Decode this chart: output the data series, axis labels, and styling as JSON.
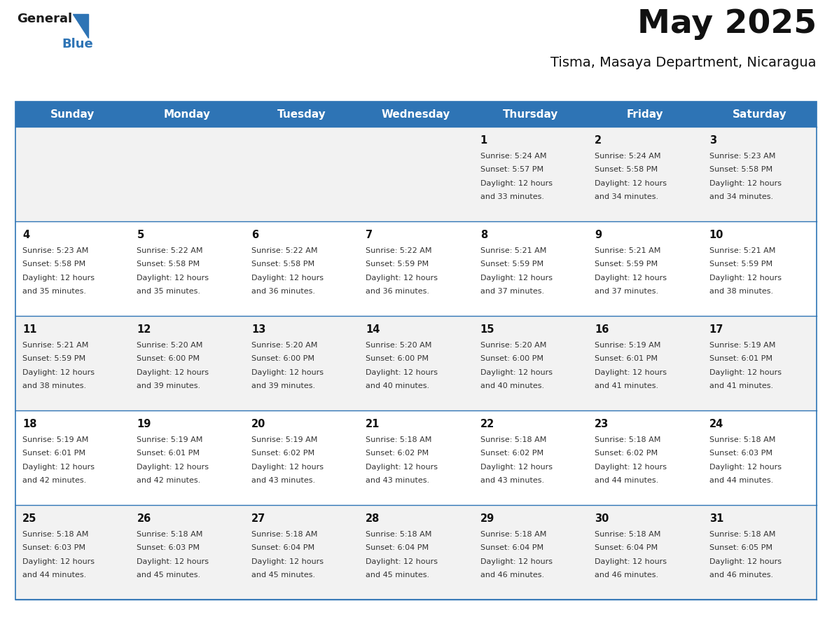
{
  "title": "May 2025",
  "subtitle": "Tisma, Masaya Department, Nicaragua",
  "header_bg_color": "#2e74b5",
  "header_text_color": "#ffffff",
  "border_color": "#2e74b5",
  "text_color": "#333333",
  "day_number_color": "#111111",
  "row_bg_odd": "#f2f2f2",
  "row_bg_even": "#ffffff",
  "days_of_week": [
    "Sunday",
    "Monday",
    "Tuesday",
    "Wednesday",
    "Thursday",
    "Friday",
    "Saturday"
  ],
  "weeks": [
    [
      {
        "day": "",
        "sunrise": "",
        "sunset": "",
        "daylight_min": ""
      },
      {
        "day": "",
        "sunrise": "",
        "sunset": "",
        "daylight_min": ""
      },
      {
        "day": "",
        "sunrise": "",
        "sunset": "",
        "daylight_min": ""
      },
      {
        "day": "",
        "sunrise": "",
        "sunset": "",
        "daylight_min": ""
      },
      {
        "day": "1",
        "sunrise": "5:24 AM",
        "sunset": "5:57 PM",
        "daylight_min": "33"
      },
      {
        "day": "2",
        "sunrise": "5:24 AM",
        "sunset": "5:58 PM",
        "daylight_min": "34"
      },
      {
        "day": "3",
        "sunrise": "5:23 AM",
        "sunset": "5:58 PM",
        "daylight_min": "34"
      }
    ],
    [
      {
        "day": "4",
        "sunrise": "5:23 AM",
        "sunset": "5:58 PM",
        "daylight_min": "35"
      },
      {
        "day": "5",
        "sunrise": "5:22 AM",
        "sunset": "5:58 PM",
        "daylight_min": "35"
      },
      {
        "day": "6",
        "sunrise": "5:22 AM",
        "sunset": "5:58 PM",
        "daylight_min": "36"
      },
      {
        "day": "7",
        "sunrise": "5:22 AM",
        "sunset": "5:59 PM",
        "daylight_min": "36"
      },
      {
        "day": "8",
        "sunrise": "5:21 AM",
        "sunset": "5:59 PM",
        "daylight_min": "37"
      },
      {
        "day": "9",
        "sunrise": "5:21 AM",
        "sunset": "5:59 PM",
        "daylight_min": "37"
      },
      {
        "day": "10",
        "sunrise": "5:21 AM",
        "sunset": "5:59 PM",
        "daylight_min": "38"
      }
    ],
    [
      {
        "day": "11",
        "sunrise": "5:21 AM",
        "sunset": "5:59 PM",
        "daylight_min": "38"
      },
      {
        "day": "12",
        "sunrise": "5:20 AM",
        "sunset": "6:00 PM",
        "daylight_min": "39"
      },
      {
        "day": "13",
        "sunrise": "5:20 AM",
        "sunset": "6:00 PM",
        "daylight_min": "39"
      },
      {
        "day": "14",
        "sunrise": "5:20 AM",
        "sunset": "6:00 PM",
        "daylight_min": "40"
      },
      {
        "day": "15",
        "sunrise": "5:20 AM",
        "sunset": "6:00 PM",
        "daylight_min": "40"
      },
      {
        "day": "16",
        "sunrise": "5:19 AM",
        "sunset": "6:01 PM",
        "daylight_min": "41"
      },
      {
        "day": "17",
        "sunrise": "5:19 AM",
        "sunset": "6:01 PM",
        "daylight_min": "41"
      }
    ],
    [
      {
        "day": "18",
        "sunrise": "5:19 AM",
        "sunset": "6:01 PM",
        "daylight_min": "42"
      },
      {
        "day": "19",
        "sunrise": "5:19 AM",
        "sunset": "6:01 PM",
        "daylight_min": "42"
      },
      {
        "day": "20",
        "sunrise": "5:19 AM",
        "sunset": "6:02 PM",
        "daylight_min": "43"
      },
      {
        "day": "21",
        "sunrise": "5:18 AM",
        "sunset": "6:02 PM",
        "daylight_min": "43"
      },
      {
        "day": "22",
        "sunrise": "5:18 AM",
        "sunset": "6:02 PM",
        "daylight_min": "43"
      },
      {
        "day": "23",
        "sunrise": "5:18 AM",
        "sunset": "6:02 PM",
        "daylight_min": "44"
      },
      {
        "day": "24",
        "sunrise": "5:18 AM",
        "sunset": "6:03 PM",
        "daylight_min": "44"
      }
    ],
    [
      {
        "day": "25",
        "sunrise": "5:18 AM",
        "sunset": "6:03 PM",
        "daylight_min": "44"
      },
      {
        "day": "26",
        "sunrise": "5:18 AM",
        "sunset": "6:03 PM",
        "daylight_min": "45"
      },
      {
        "day": "27",
        "sunrise": "5:18 AM",
        "sunset": "6:04 PM",
        "daylight_min": "45"
      },
      {
        "day": "28",
        "sunrise": "5:18 AM",
        "sunset": "6:04 PM",
        "daylight_min": "45"
      },
      {
        "day": "29",
        "sunrise": "5:18 AM",
        "sunset": "6:04 PM",
        "daylight_min": "46"
      },
      {
        "day": "30",
        "sunrise": "5:18 AM",
        "sunset": "6:04 PM",
        "daylight_min": "46"
      },
      {
        "day": "31",
        "sunrise": "5:18 AM",
        "sunset": "6:05 PM",
        "daylight_min": "46"
      }
    ]
  ]
}
